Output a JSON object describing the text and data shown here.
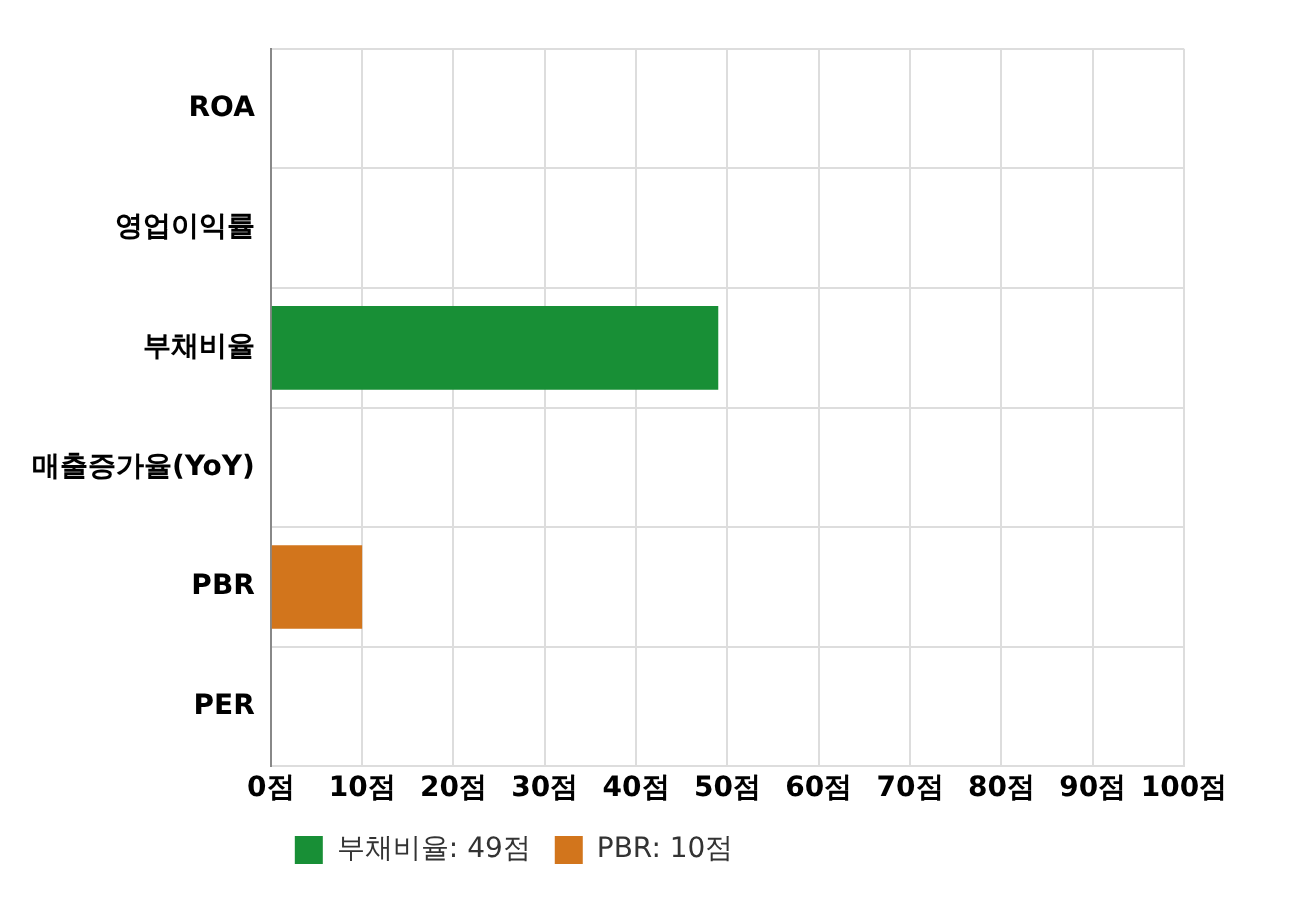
{
  "chart_data": {
    "type": "bar",
    "orientation": "horizontal",
    "stacked": true,
    "categories": [
      "ROA",
      "영업이익률",
      "부채비율",
      "매출증가율(YoY)",
      "PBR",
      "PER"
    ],
    "series": [
      {
        "name": "부채비율: 49점",
        "color": "#188f36",
        "values": [
          null,
          null,
          49,
          null,
          null,
          null
        ]
      },
      {
        "name": "PBR: 10점",
        "color": "#d2751c",
        "values": [
          null,
          null,
          null,
          null,
          10,
          null
        ]
      }
    ],
    "xlim": [
      0,
      100
    ],
    "xticks": [
      {
        "value": 0,
        "label": "0점"
      },
      {
        "value": 10,
        "label": "10점"
      },
      {
        "value": 20,
        "label": "20점"
      },
      {
        "value": 30,
        "label": "30점"
      },
      {
        "value": 40,
        "label": "40점"
      },
      {
        "value": 50,
        "label": "50점"
      },
      {
        "value": 60,
        "label": "60점"
      },
      {
        "value": 70,
        "label": "70점"
      },
      {
        "value": 80,
        "label": "80점"
      },
      {
        "value": 90,
        "label": "90점"
      },
      {
        "value": 100,
        "label": "100점"
      }
    ],
    "grid": true,
    "legend": "bottom left"
  }
}
